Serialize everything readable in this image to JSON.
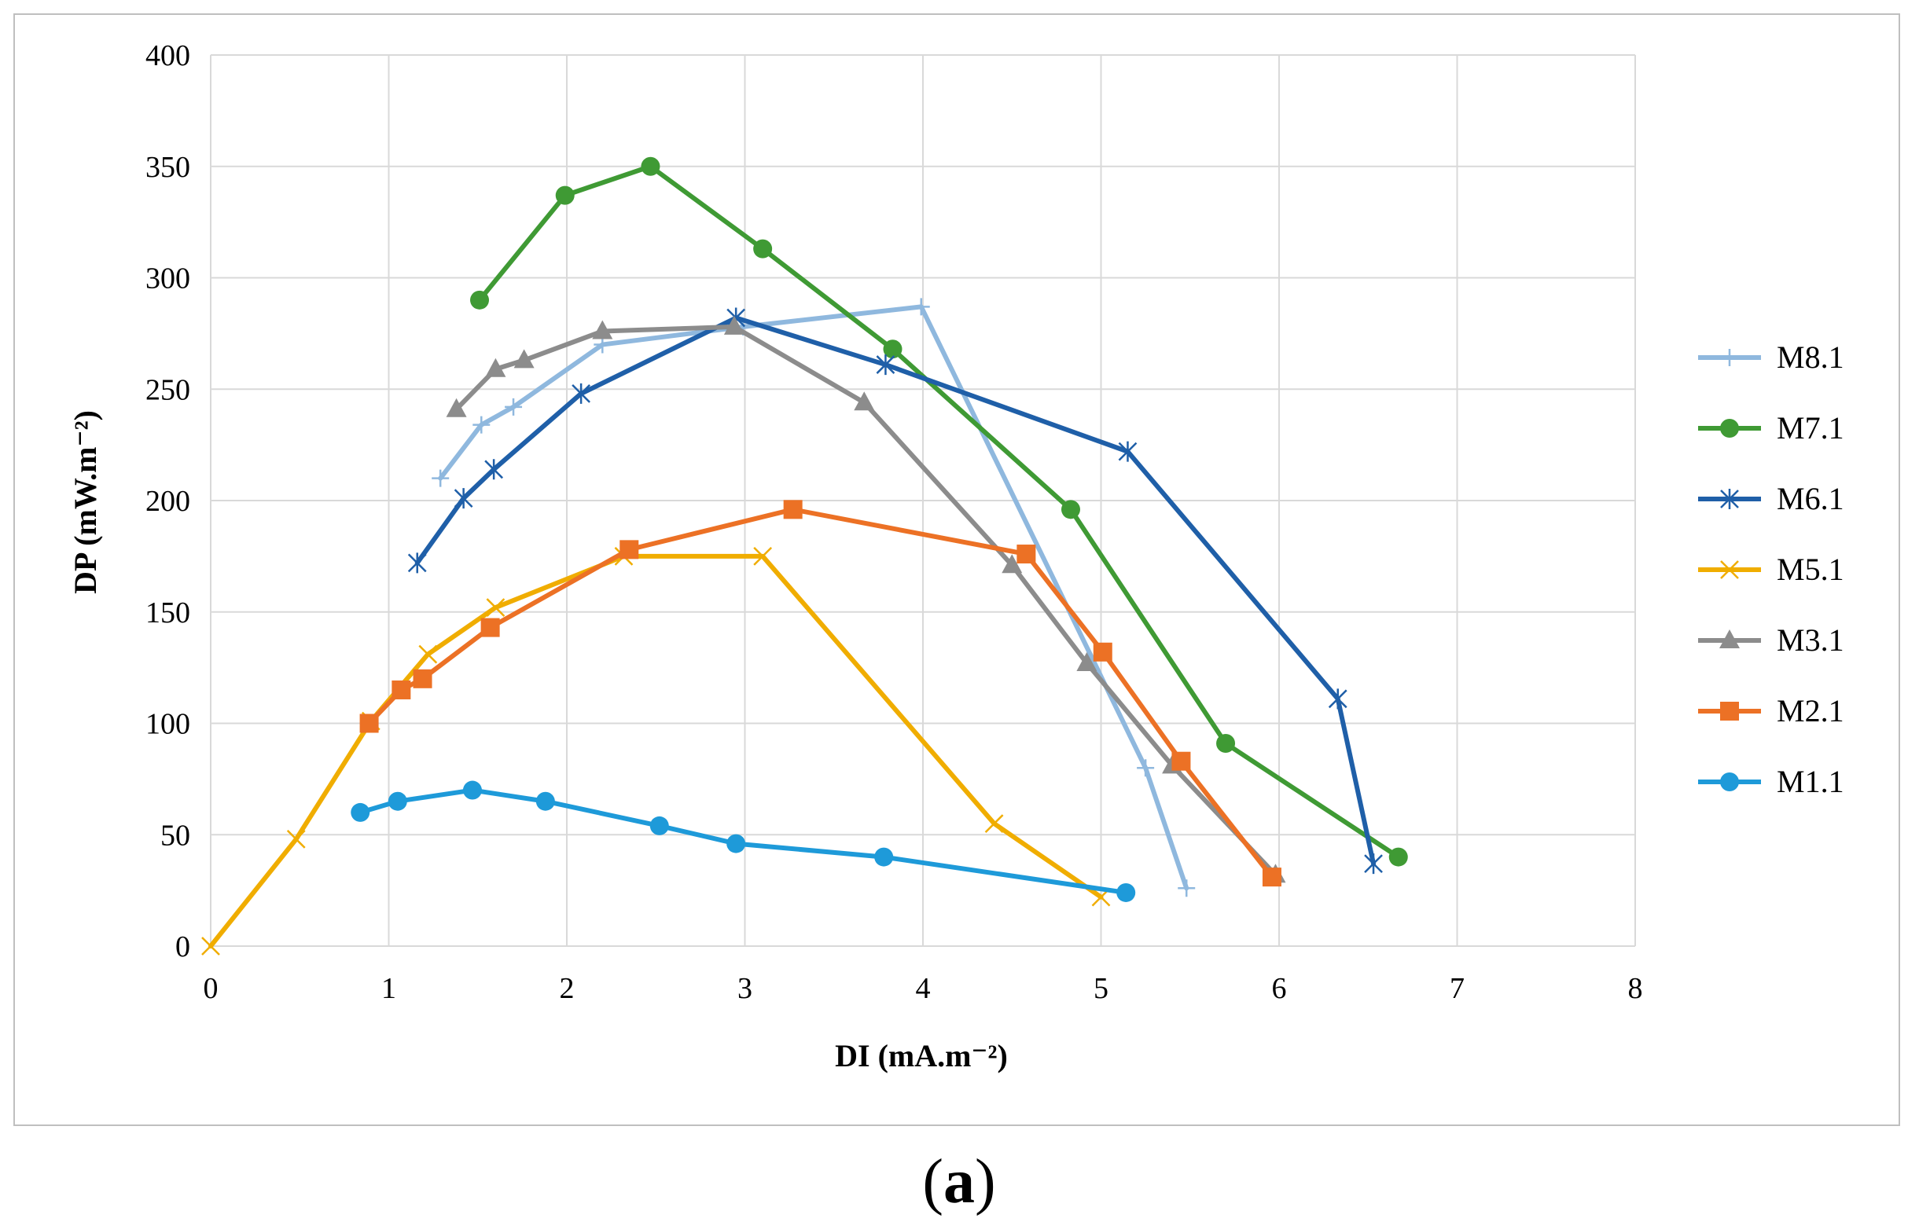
{
  "chart_data": {
    "type": "line",
    "title": "",
    "caption": "(a)",
    "caption_letter": "a",
    "xlabel": "DI (mA.m⁻²)",
    "ylabel": "DP (mW.m⁻²)",
    "xlim": [
      0,
      8
    ],
    "ylim": [
      0,
      400
    ],
    "xticks": [
      0,
      1,
      2,
      3,
      4,
      5,
      6,
      7,
      8
    ],
    "yticks": [
      0,
      50,
      100,
      150,
      200,
      250,
      300,
      350,
      400
    ],
    "grid": true,
    "legend_position": "right",
    "series": [
      {
        "name": "M8.1",
        "color": "#8fb8de",
        "marker": "plus",
        "x": [
          1.29,
          1.52,
          1.7,
          2.2,
          2.99,
          3.99,
          5.25,
          5.48
        ],
        "y": [
          210,
          234,
          242,
          270,
          278,
          287,
          80,
          26
        ]
      },
      {
        "name": "M7.1",
        "color": "#3f9a34",
        "marker": "circle",
        "x": [
          1.51,
          1.99,
          2.47,
          3.1,
          3.83,
          4.83,
          5.7,
          6.67
        ],
        "y": [
          290,
          337,
          350,
          313,
          268,
          196,
          91,
          40
        ]
      },
      {
        "name": "M6.1",
        "color": "#1f5fa8",
        "marker": "star",
        "x": [
          1.16,
          1.42,
          1.59,
          2.08,
          2.95,
          3.79,
          5.15,
          6.33,
          6.53
        ],
        "y": [
          172,
          201,
          214,
          248,
          282,
          261,
          222,
          111,
          37
        ]
      },
      {
        "name": "M5.1",
        "color": "#f0ad00",
        "marker": "x",
        "x": [
          0,
          0.48,
          0.9,
          1.22,
          1.6,
          2.32,
          3.1,
          4.4,
          5.0
        ],
        "y": [
          0,
          48,
          101,
          131,
          152,
          175,
          175,
          55,
          22
        ]
      },
      {
        "name": "M3.1",
        "color": "#8c8c8c",
        "marker": "triangle",
        "x": [
          1.38,
          1.6,
          1.76,
          2.2,
          2.94,
          3.67,
          4.5,
          4.92,
          5.4,
          5.98
        ],
        "y": [
          241,
          259,
          263,
          276,
          278,
          244,
          171,
          127,
          81,
          32
        ]
      },
      {
        "name": "M2.1",
        "color": "#ec7125",
        "marker": "square",
        "x": [
          0.89,
          1.07,
          1.19,
          1.57,
          2.35,
          3.27,
          4.58,
          5.01,
          5.45,
          5.96
        ],
        "y": [
          100,
          115,
          120,
          143,
          178,
          196,
          176,
          132,
          83,
          31
        ]
      },
      {
        "name": "M1.1",
        "color": "#1e9ad9",
        "marker": "circle",
        "x": [
          0.84,
          1.05,
          1.47,
          1.88,
          2.52,
          2.95,
          3.78,
          5.14
        ],
        "y": [
          60,
          65,
          70,
          65,
          54,
          46,
          40,
          24
        ]
      }
    ]
  }
}
